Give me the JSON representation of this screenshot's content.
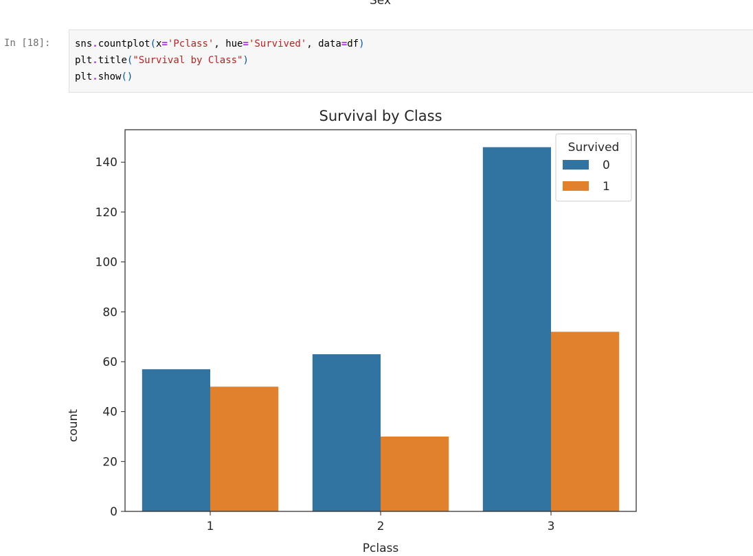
{
  "notebook": {
    "prev_output_label": "Sex",
    "prompt": "In [18]:",
    "code": {
      "line1": {
        "t1": "sns",
        "t2": ".",
        "t3": "countplot",
        "t4": "(",
        "t5": "x",
        "t6": "=",
        "t7": "'Pclass'",
        "t8": ", hue",
        "t9": "=",
        "t10": "'Survived'",
        "t11": ", data",
        "t12": "=",
        "t13": "df",
        "t14": ")"
      },
      "line2": {
        "t1": "plt",
        "t2": ".",
        "t3": "title",
        "t4": "(",
        "t5": "\"Survival by Class\"",
        "t6": ")"
      },
      "line3": {
        "t1": "plt",
        "t2": ".",
        "t3": "show",
        "t4": "()"
      }
    }
  },
  "chart_data": {
    "type": "bar",
    "title": "Survival by Class",
    "xlabel": "Pclass",
    "ylabel": "count",
    "categories": [
      "1",
      "2",
      "3"
    ],
    "series": [
      {
        "name": "0",
        "values": [
          57,
          63,
          146
        ],
        "color": "#3274a1"
      },
      {
        "name": "1",
        "values": [
          50,
          30,
          72
        ],
        "color": "#e1812c"
      }
    ],
    "ylim": [
      0,
      153
    ],
    "yticks": [
      0,
      20,
      40,
      60,
      80,
      100,
      120,
      140
    ],
    "legend": {
      "title": "Survived",
      "placement": "top-right"
    },
    "grid": false
  }
}
